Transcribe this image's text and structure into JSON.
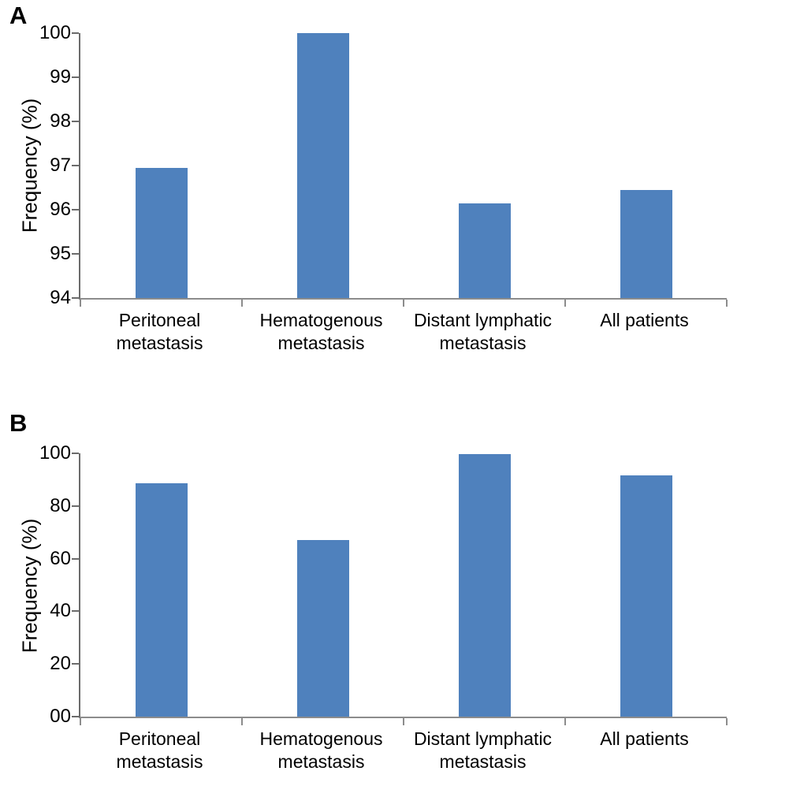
{
  "style": {
    "bar_color": "#4f81bd",
    "axis_color": "#6b6b6b"
  },
  "chart_data": [
    {
      "type": "bar",
      "panel": "A",
      "title": "",
      "xlabel": "",
      "ylabel": "Frequency (%)",
      "categories": [
        "Peritoneal\nmetastasis",
        "Hematogenous\nmetastasis",
        "Distant lymphatic\nmetastasis",
        "All patients"
      ],
      "values": [
        96.95,
        100,
        96.15,
        96.45
      ],
      "ylim": [
        94,
        100
      ],
      "yticks": [
        "94",
        "95",
        "96",
        "97",
        "98",
        "99",
        "100"
      ],
      "grid": false,
      "legend": false
    },
    {
      "type": "bar",
      "panel": "B",
      "title": "",
      "xlabel": "",
      "ylabel": "Frequency (%)",
      "categories": [
        "Peritoneal\nmetastasis",
        "Hematogenous\nmetastasis",
        "Distant lymphatic\nmetastasis",
        "All patients"
      ],
      "values": [
        88.5,
        67,
        99.6,
        91.5
      ],
      "ylim": [
        0,
        100
      ],
      "yticks": [
        "00",
        "20",
        "40",
        "60",
        "80",
        "100"
      ],
      "grid": false,
      "legend": false
    }
  ]
}
